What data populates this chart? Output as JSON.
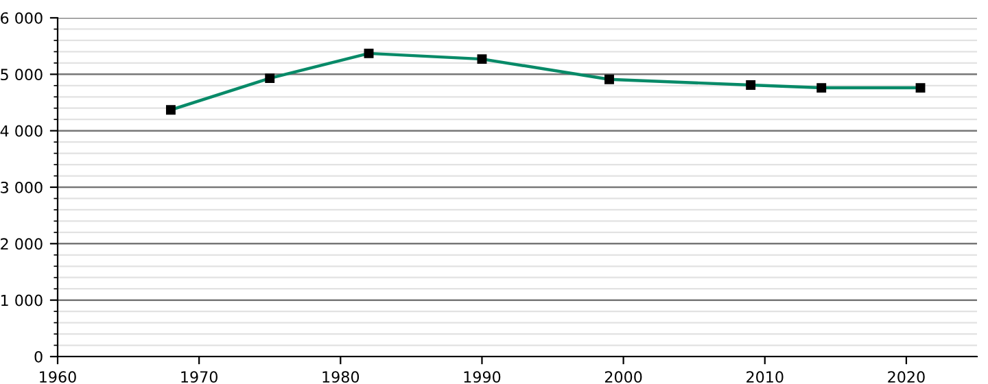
{
  "chart_data": {
    "type": "line",
    "x": [
      1968,
      1975,
      1982,
      1990,
      1999,
      2009,
      2014,
      2021
    ],
    "series": [
      {
        "color": "#088a68",
        "values": [
          4370,
          4930,
          5370,
          5270,
          4910,
          4810,
          4760,
          4760
        ]
      }
    ],
    "marker": "square",
    "xlim": [
      1960,
      2025
    ],
    "xticks": [
      1960,
      1970,
      1980,
      1990,
      2000,
      2010,
      2020
    ],
    "ylim": [
      0,
      6000
    ],
    "yticks": [
      0,
      {
        "value": 1000,
        "label": "1 000"
      },
      {
        "value": 2000,
        "label": "2 000"
      },
      {
        "value": 3000,
        "label": "3 000"
      },
      {
        "value": 4000,
        "label": "4 000"
      },
      {
        "value": 5000,
        "label": "5 000"
      },
      {
        "value": 6000,
        "label": "6 000"
      }
    ],
    "grid": "y",
    "legend": false
  }
}
